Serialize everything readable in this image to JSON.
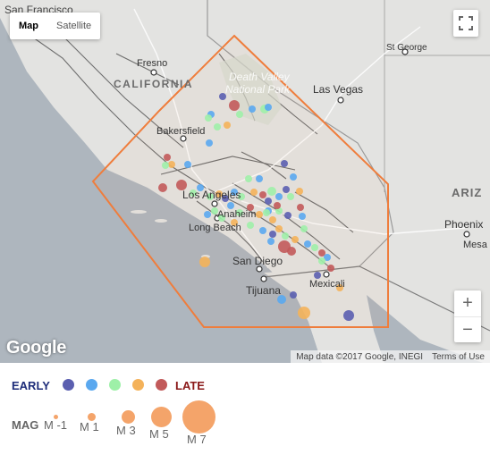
{
  "map": {
    "type_buttons": {
      "map": "Map",
      "satellite": "Satellite"
    },
    "labels": {
      "san_francisco": "San Francisco",
      "fresno": "Fresno",
      "california": "CALIFORNIA",
      "death_valley": "Death Valley National Park",
      "st_george": "St George",
      "las_vegas": "Las Vegas",
      "bakersfield": "Bakersfield",
      "los_angeles": "Los Angeles",
      "anaheim": "Anaheim",
      "long_beach": "Long Beach",
      "arizona": "ARIZ",
      "phoenix": "Phoenix",
      "mesa": "Mesa",
      "san_diego": "San Diego",
      "mexicali": "Mexicali",
      "tijuana": "Tijuana"
    },
    "google_logo": "Google",
    "attribution": "Map data ©2017 Google, INEGI",
    "terms": "Terms of Use",
    "zoom_in": "+",
    "zoom_out": "−",
    "polygon_color": "#ef7d3c"
  },
  "legend": {
    "early_label": "EARLY",
    "late_label": "LATE",
    "mag_label": "MAG",
    "time_colors": [
      "#5b5fb0",
      "#5aa8ef",
      "#9ef0a8",
      "#f4b25a",
      "#c25a5a"
    ],
    "magnitudes": [
      {
        "label": "M -1",
        "value": -1
      },
      {
        "label": "M 1",
        "value": 1
      },
      {
        "label": "M 3",
        "value": 3
      },
      {
        "label": "M 5",
        "value": 5
      },
      {
        "label": "M 7",
        "value": 7
      }
    ],
    "mag_color": "#f4a46a"
  }
}
